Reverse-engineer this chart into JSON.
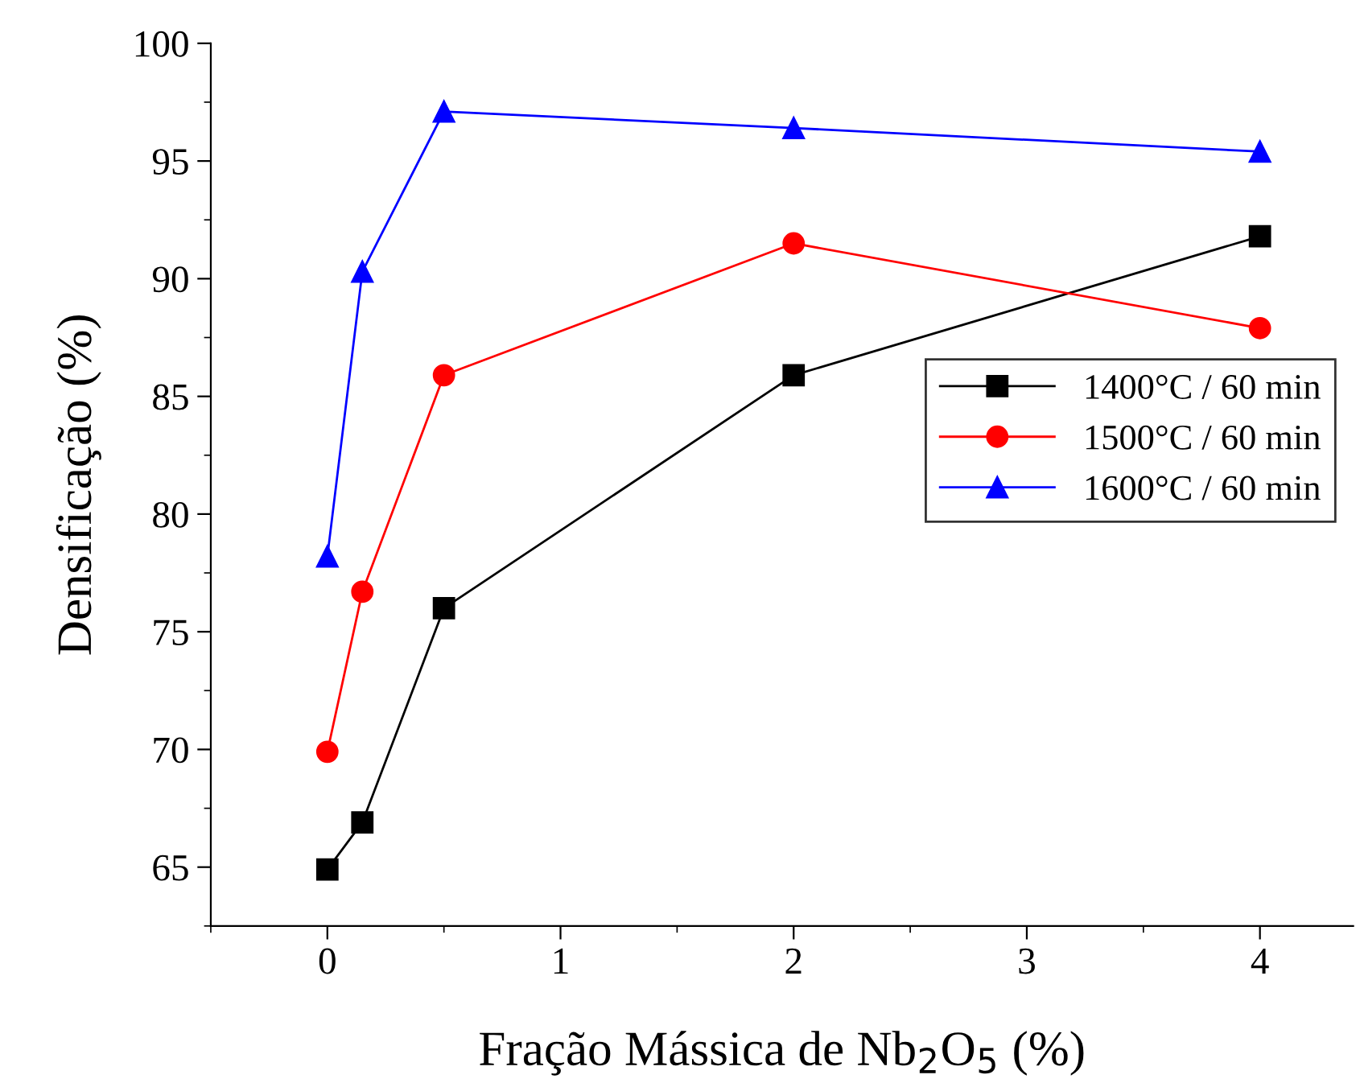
{
  "chart_data": {
    "type": "line",
    "xlabel": "Fração Mássica de Nb$_{2}$O$_{5}$ (%)",
    "ylabel": "Densificação (%)",
    "xlim": [
      -0.5,
      4.4
    ],
    "xticks": [
      0,
      1,
      2,
      3,
      4
    ],
    "ylim": [
      62.5,
      100
    ],
    "yticks": [
      65,
      70,
      75,
      80,
      85,
      90,
      95,
      100
    ],
    "grid": false,
    "legend": "right",
    "x": [
      0,
      0.15,
      0.5,
      2,
      4
    ],
    "series": [
      {
        "name": "1400°C / 60 min",
        "color": "#000000",
        "marker": "square",
        "values": [
          64.9,
          66.9,
          76.0,
          85.9,
          91.8
        ]
      },
      {
        "name": "1500°C / 60 min",
        "color": "#ff0000",
        "marker": "circle",
        "values": [
          69.9,
          76.7,
          85.9,
          91.5,
          87.9
        ]
      },
      {
        "name": "1600°C / 60 min",
        "color": "#0000ff",
        "marker": "triangle",
        "values": [
          78.2,
          90.3,
          97.1,
          96.4,
          95.4
        ]
      }
    ]
  }
}
